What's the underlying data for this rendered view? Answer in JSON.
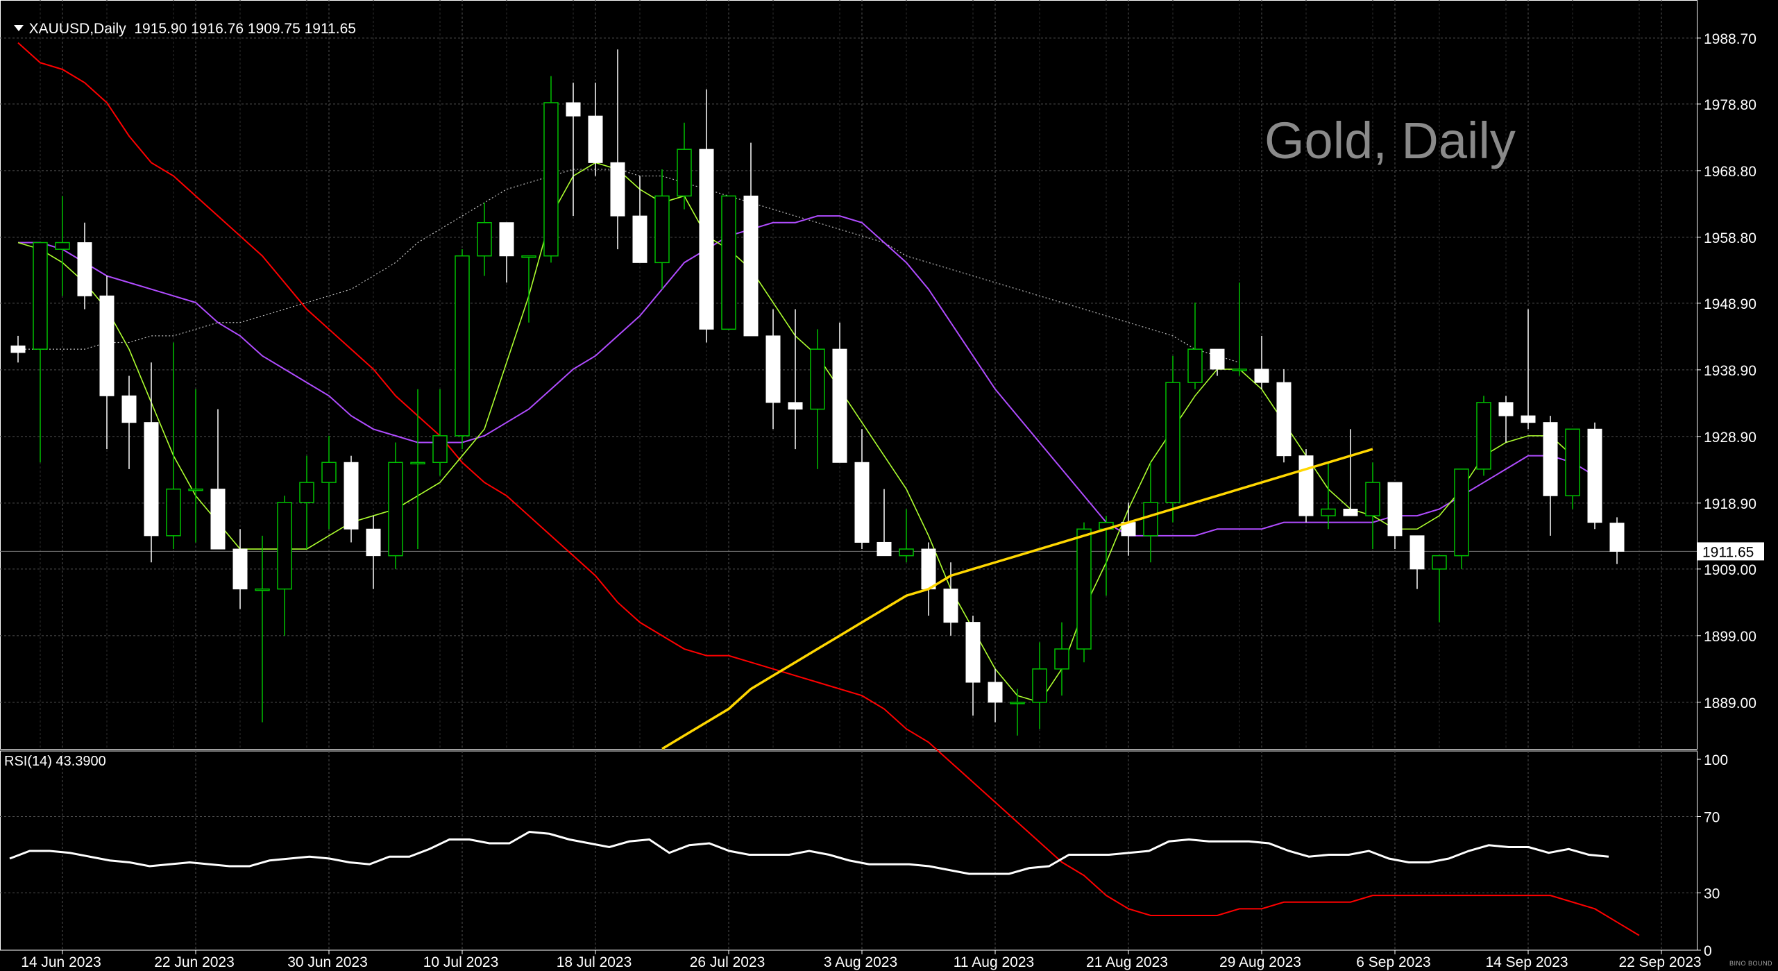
{
  "header": {
    "symbol": "XAUUSD,Daily",
    "ohlc": "1915.90 1916.76 1909.75 1911.65"
  },
  "watermark": "Gold, Daily",
  "rsi_label": "RSI(14) 43.3900",
  "logo": "BINO BOUND",
  "colors": {
    "background": "#000000",
    "grid": "#505050",
    "bull_candle": "#00c000",
    "bear_candle": "#ffffff",
    "ma_fast": "#adff2f",
    "ma_medium": "#b04cff",
    "ma_slow_red": "#ff0000",
    "ma_long_dotted": "#c0c0c0",
    "ma_trend_yellow": "#ffd700",
    "rsi_line": "#ffffff"
  },
  "chart_data": [
    {
      "type": "candlestick",
      "symbol": "XAUUSD",
      "timeframe": "Daily",
      "title": "Gold, Daily",
      "y_ticks": [
        1988.7,
        1978.8,
        1968.8,
        1958.8,
        1948.9,
        1938.9,
        1928.9,
        1918.9,
        1909.0,
        1899.0,
        1889.0
      ],
      "y_tick_labels": [
        "1988.70",
        "1978.80",
        "1968.80",
        "1958.80",
        "1948.90",
        "1938.90",
        "1928.90",
        "1918.90",
        "1909.00",
        "1899.00",
        "1889.00"
      ],
      "ylim": [
        1882.0,
        1994.0
      ],
      "x_tick_labels": [
        "14 Jun 2023",
        "22 Jun 2023",
        "30 Jun 2023",
        "10 Jul 2023",
        "18 Jul 2023",
        "26 Jul 2023",
        "3 Aug 2023",
        "11 Aug 2023",
        "21 Aug 2023",
        "29 Aug 2023",
        "6 Sep 2023",
        "14 Sep 2023",
        "22 Sep 2023"
      ],
      "x_tick_index": [
        1,
        7,
        13,
        19,
        25,
        31,
        37,
        43,
        49,
        55,
        61,
        67,
        73
      ],
      "current_price": 1911.65,
      "current_price_label": "1911.65",
      "candles": [
        {
          "o": 1942.5,
          "h": 1944,
          "l": 1940,
          "c": 1941.5
        },
        {
          "o": 1942,
          "h": 1958,
          "l": 1925,
          "c": 1958
        },
        {
          "o": 1957,
          "h": 1965,
          "l": 1950,
          "c": 1958
        },
        {
          "o": 1958,
          "h": 1961,
          "l": 1948,
          "c": 1950
        },
        {
          "o": 1950,
          "h": 1953,
          "l": 1927,
          "c": 1935
        },
        {
          "o": 1935,
          "h": 1938,
          "l": 1924,
          "c": 1931
        },
        {
          "o": 1931,
          "h": 1940,
          "l": 1910,
          "c": 1914
        },
        {
          "o": 1914,
          "h": 1943,
          "l": 1912,
          "c": 1921
        },
        {
          "o": 1921,
          "h": 1936,
          "l": 1913,
          "c": 1921
        },
        {
          "o": 1921,
          "h": 1933,
          "l": 1912,
          "c": 1912
        },
        {
          "o": 1912,
          "h": 1915,
          "l": 1903,
          "c": 1906
        },
        {
          "o": 1906,
          "h": 1914,
          "l": 1886,
          "c": 1906
        },
        {
          "o": 1906,
          "h": 1920,
          "l": 1899,
          "c": 1919
        },
        {
          "o": 1919,
          "h": 1926,
          "l": 1912,
          "c": 1922
        },
        {
          "o": 1922,
          "h": 1929,
          "l": 1915,
          "c": 1925
        },
        {
          "o": 1925,
          "h": 1926,
          "l": 1913,
          "c": 1915
        },
        {
          "o": 1915,
          "h": 1917,
          "l": 1906,
          "c": 1911
        },
        {
          "o": 1911,
          "h": 1928,
          "l": 1909,
          "c": 1925
        },
        {
          "o": 1925,
          "h": 1936,
          "l": 1912,
          "c": 1925
        },
        {
          "o": 1925,
          "h": 1936,
          "l": 1923,
          "c": 1929
        },
        {
          "o": 1929,
          "h": 1957,
          "l": 1927,
          "c": 1956
        },
        {
          "o": 1956,
          "h": 1964,
          "l": 1953,
          "c": 1961
        },
        {
          "o": 1961,
          "h": 1961,
          "l": 1952,
          "c": 1956
        },
        {
          "o": 1956,
          "h": 1956,
          "l": 1946,
          "c": 1956
        },
        {
          "o": 1956,
          "h": 1983,
          "l": 1955,
          "c": 1979
        },
        {
          "o": 1979,
          "h": 1982,
          "l": 1962,
          "c": 1977
        },
        {
          "o": 1977,
          "h": 1982,
          "l": 1968,
          "c": 1970
        },
        {
          "o": 1970,
          "h": 1987,
          "l": 1957,
          "c": 1962
        },
        {
          "o": 1962,
          "h": 1968,
          "l": 1955,
          "c": 1955
        },
        {
          "o": 1955,
          "h": 1969,
          "l": 1951,
          "c": 1965
        },
        {
          "o": 1965,
          "h": 1976,
          "l": 1963,
          "c": 1972
        },
        {
          "o": 1972,
          "h": 1981,
          "l": 1943,
          "c": 1945
        },
        {
          "o": 1945,
          "h": 1965,
          "l": 1945,
          "c": 1965
        },
        {
          "o": 1965,
          "h": 1973,
          "l": 1944,
          "c": 1944
        },
        {
          "o": 1944,
          "h": 1948,
          "l": 1930,
          "c": 1934
        },
        {
          "o": 1934,
          "h": 1948,
          "l": 1927,
          "c": 1933
        },
        {
          "o": 1933,
          "h": 1945,
          "l": 1924,
          "c": 1942
        },
        {
          "o": 1942,
          "h": 1946,
          "l": 1925,
          "c": 1925
        },
        {
          "o": 1925,
          "h": 1930,
          "l": 1912,
          "c": 1913
        },
        {
          "o": 1913,
          "h": 1921,
          "l": 1911,
          "c": 1911
        },
        {
          "o": 1911,
          "h": 1918,
          "l": 1910,
          "c": 1912
        },
        {
          "o": 1912,
          "h": 1913,
          "l": 1902,
          "c": 1906
        },
        {
          "o": 1906,
          "h": 1910,
          "l": 1899,
          "c": 1901
        },
        {
          "o": 1901,
          "h": 1902,
          "l": 1887,
          "c": 1892
        },
        {
          "o": 1892,
          "h": 1894,
          "l": 1886,
          "c": 1889
        },
        {
          "o": 1889,
          "h": 1891,
          "l": 1884,
          "c": 1889
        },
        {
          "o": 1889,
          "h": 1898,
          "l": 1885,
          "c": 1894
        },
        {
          "o": 1894,
          "h": 1901,
          "l": 1890,
          "c": 1897
        },
        {
          "o": 1897,
          "h": 1916,
          "l": 1895,
          "c": 1915
        },
        {
          "o": 1915,
          "h": 1917,
          "l": 1905,
          "c": 1916
        },
        {
          "o": 1916,
          "h": 1919,
          "l": 1911,
          "c": 1914
        },
        {
          "o": 1914,
          "h": 1925,
          "l": 1910,
          "c": 1919
        },
        {
          "o": 1919,
          "h": 1941,
          "l": 1916,
          "c": 1937
        },
        {
          "o": 1937,
          "h": 1949,
          "l": 1936,
          "c": 1942
        },
        {
          "o": 1942,
          "h": 1942,
          "l": 1938,
          "c": 1939
        },
        {
          "o": 1939,
          "h": 1952,
          "l": 1938,
          "c": 1939
        },
        {
          "o": 1939,
          "h": 1944,
          "l": 1936,
          "c": 1937
        },
        {
          "o": 1937,
          "h": 1939,
          "l": 1925,
          "c": 1926
        },
        {
          "o": 1926,
          "h": 1927,
          "l": 1916,
          "c": 1917
        },
        {
          "o": 1917,
          "h": 1925,
          "l": 1915,
          "c": 1918
        },
        {
          "o": 1918,
          "h": 1930,
          "l": 1917,
          "c": 1917
        },
        {
          "o": 1917,
          "h": 1925,
          "l": 1912,
          "c": 1922
        },
        {
          "o": 1922,
          "h": 1922,
          "l": 1912,
          "c": 1914
        },
        {
          "o": 1914,
          "h": 1914,
          "l": 1906,
          "c": 1909
        },
        {
          "o": 1909,
          "h": 1911,
          "l": 1901,
          "c": 1911
        },
        {
          "o": 1911,
          "h": 1924,
          "l": 1909,
          "c": 1924
        },
        {
          "o": 1924,
          "h": 1935,
          "l": 1923,
          "c": 1934
        },
        {
          "o": 1934,
          "h": 1935,
          "l": 1928,
          "c": 1932
        },
        {
          "o": 1932,
          "h": 1948,
          "l": 1930,
          "c": 1931
        },
        {
          "o": 1931,
          "h": 1932,
          "l": 1914,
          "c": 1920
        },
        {
          "o": 1920,
          "h": 1930,
          "l": 1918,
          "c": 1930
        },
        {
          "o": 1930,
          "h": 1931,
          "l": 1915,
          "c": 1916
        },
        {
          "o": 1915.9,
          "h": 1916.76,
          "l": 1909.75,
          "c": 1911.65
        }
      ],
      "indicators": {
        "ma_red": [
          1988,
          1985,
          1984,
          1982,
          1979,
          1974,
          1970,
          1968,
          1965,
          1962,
          1959,
          1956,
          1952,
          1948,
          1945,
          1942,
          1939,
          1935,
          1932,
          1929,
          1925,
          1922,
          1920,
          1917,
          1914,
          1911,
          1908,
          1904,
          1901,
          1899,
          1897,
          1896,
          1896,
          1895,
          1894,
          1893,
          1892,
          1891,
          1890,
          1888,
          1885,
          1883,
          1880,
          1877,
          1874,
          1871,
          1868,
          1865,
          1863,
          1860,
          1858,
          1857,
          1857,
          1857,
          1857,
          1858,
          1858,
          1859,
          1859,
          1859,
          1859,
          1860,
          1860,
          1860,
          1860,
          1860,
          1860,
          1860,
          1860,
          1860,
          1859,
          1858,
          1856,
          1854
        ],
        "ma_fast": [
          1958,
          1957,
          1955,
          1952,
          1948,
          1942,
          1934,
          1926,
          1920,
          1916,
          1912,
          1912,
          1912,
          1912,
          1914,
          1916,
          1917,
          1918,
          1920,
          1922,
          1926,
          1930,
          1940,
          1950,
          1962,
          1968,
          1970,
          1969,
          1966,
          1964,
          1965,
          1959,
          1957,
          1954,
          1949,
          1944,
          1941,
          1936,
          1931,
          1926,
          1921,
          1914,
          1906,
          1900,
          1894,
          1890,
          1889,
          1894,
          1903,
          1910,
          1918,
          1925,
          1930,
          1935,
          1939,
          1939,
          1936,
          1931,
          1926,
          1921,
          1918,
          1917,
          1915,
          1915,
          1917,
          1921,
          1926,
          1928,
          1929,
          1929,
          1926
        ],
        "ma_medium": [
          1958,
          1958,
          1957,
          1955,
          1953,
          1952,
          1951,
          1950,
          1949,
          1946,
          1944,
          1941,
          1939,
          1937,
          1935,
          1932,
          1930,
          1929,
          1928,
          1928,
          1928,
          1929,
          1931,
          1933,
          1936,
          1939,
          1941,
          1944,
          1947,
          1951,
          1955,
          1957,
          1959,
          1960,
          1961,
          1961,
          1962,
          1962,
          1961,
          1958,
          1955,
          1951,
          1946,
          1941,
          1936,
          1932,
          1928,
          1924,
          1920,
          1916,
          1914,
          1914,
          1914,
          1914,
          1915,
          1915,
          1915,
          1916,
          1916,
          1916,
          1916,
          1916,
          1917,
          1917,
          1918,
          1920,
          1922,
          1924,
          1926,
          1926,
          1925,
          1923
        ],
        "ma_long_dotted": [
          1942,
          1942,
          1942,
          1942,
          1943,
          1943,
          1944,
          1944,
          1945,
          1946,
          1946,
          1947,
          1948,
          1949,
          1950,
          1951,
          1953,
          1955,
          1958,
          1960,
          1962,
          1964,
          1966,
          1967,
          1968,
          1969,
          1969,
          1969,
          1968,
          1968,
          1967,
          1966,
          1965,
          1964,
          1963,
          1962,
          1961,
          1960,
          1959,
          1958,
          1956,
          1955,
          1954,
          1953,
          1952,
          1951,
          1950,
          1949,
          1948,
          1947,
          1946,
          1945,
          1944,
          1942,
          1941,
          1940
        ],
        "ma_trend_yellow": [
          1882,
          1884,
          1886,
          1888,
          1891,
          1893,
          1895,
          1897,
          1899,
          1901,
          1903,
          1905,
          1906,
          1908,
          1909,
          1910,
          1911,
          1912,
          1913,
          1914,
          1915,
          1916,
          1917,
          1918,
          1919,
          1920,
          1921,
          1922,
          1923,
          1924,
          1925,
          1926,
          1927
        ],
        "ma_yellow_start_index": 29,
        "ma_red_start_index": 0,
        "ma_fast_start_index": 0,
        "ma_medium_start_index": 0,
        "ma_long_start_index": 0
      }
    },
    {
      "type": "line",
      "title": "RSI(14) 43.3900",
      "y_ticks": [
        100,
        70,
        30,
        0
      ],
      "y_tick_labels": [
        "100",
        "70",
        "30",
        "0"
      ],
      "ylim": [
        0,
        100
      ],
      "series": [
        {
          "values": [
            48,
            52,
            52,
            51,
            49,
            47,
            46,
            44,
            45,
            46,
            45,
            44,
            44,
            47,
            48,
            49,
            48,
            46,
            45,
            49,
            49,
            53,
            58,
            58,
            56,
            56,
            62,
            61,
            58,
            56,
            54,
            57,
            58,
            51,
            55,
            56,
            52,
            50,
            50,
            50,
            52,
            50,
            47,
            45,
            45,
            45,
            44,
            42,
            40,
            40,
            40,
            43,
            44,
            50,
            50,
            50,
            51,
            52,
            57,
            58,
            57,
            57,
            57,
            56,
            52,
            49,
            50,
            50,
            52,
            48,
            46,
            46,
            48,
            52,
            55,
            54,
            54,
            51,
            53,
            50,
            49
          ]
        }
      ]
    }
  ]
}
